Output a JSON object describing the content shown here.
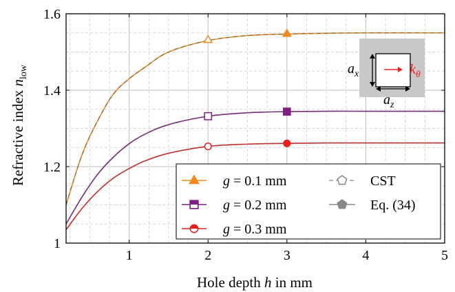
{
  "chart_data": {
    "type": "line",
    "xlabel_text": "Hole depth ",
    "xlabel_var": "h",
    "xlabel_unit": " in mm",
    "ylabel_text": "Refractive index ",
    "ylabel_var": "n",
    "ylabel_sub": "low",
    "xlim": [
      0.2,
      5
    ],
    "ylim": [
      1.0,
      1.6
    ],
    "xticks": [
      "1",
      "2",
      "3",
      "4",
      "5"
    ],
    "yticks": [
      "1",
      "1.2",
      "1.4",
      "1.6"
    ],
    "grid": true,
    "legend_placement": "bottom-right",
    "series": [
      {
        "name": "g = 0.1 mm",
        "label_var": "g",
        "label_rest": " = 0.1 mm",
        "color": "#f08a1c",
        "marker": "triangle",
        "x": [
          0.2,
          0.4,
          0.6,
          0.8,
          1.0,
          1.2,
          1.5,
          2.0,
          2.5,
          3.0,
          3.5,
          4.0,
          5.0
        ],
        "y": [
          1.1,
          1.23,
          1.32,
          1.39,
          1.43,
          1.46,
          1.5,
          1.53,
          1.543,
          1.547,
          1.549,
          1.55,
          1.55
        ],
        "cst_point": [
          2,
          1.532
        ],
        "eq_point": [
          3,
          1.548
        ]
      },
      {
        "name": "g = 0.2 mm",
        "label_var": "g",
        "label_rest": " = 0.2 mm",
        "color": "#7f1f86",
        "marker": "square",
        "x": [
          0.2,
          0.4,
          0.6,
          0.8,
          1.0,
          1.2,
          1.5,
          2.0,
          2.5,
          3.0,
          3.5,
          4.0,
          5.0
        ],
        "y": [
          1.05,
          1.12,
          1.18,
          1.225,
          1.26,
          1.285,
          1.31,
          1.332,
          1.341,
          1.344,
          1.345,
          1.345,
          1.345
        ],
        "cst_point": [
          2,
          1.332
        ],
        "eq_point": [
          3,
          1.344
        ]
      },
      {
        "name": "g = 0.3 mm",
        "label_var": "g",
        "label_rest": " = 0.3 mm",
        "color": "#e8211d",
        "marker": "circle",
        "x": [
          0.2,
          0.4,
          0.6,
          0.8,
          1.0,
          1.2,
          1.5,
          2.0,
          2.5,
          3.0,
          3.5,
          4.0,
          5.0
        ],
        "y": [
          1.035,
          1.09,
          1.135,
          1.17,
          1.195,
          1.215,
          1.235,
          1.253,
          1.259,
          1.261,
          1.262,
          1.262,
          1.262
        ],
        "cst_point": [
          2,
          1.253
        ],
        "eq_point": [
          3,
          1.261
        ]
      }
    ],
    "legend_extra": [
      {
        "name": "CST",
        "marker": "pentagon-open"
      },
      {
        "name": "Eq. (34)",
        "marker": "pentagon-filled"
      }
    ],
    "inset": {
      "label_ax_var": "a",
      "label_ax_sub": "x",
      "label_az_var": "a",
      "label_az_sub": "z",
      "label_k_var": "k",
      "label_k_sub": "θ",
      "k_color": "#e8211d",
      "box_color": "#c8c8c8"
    }
  }
}
